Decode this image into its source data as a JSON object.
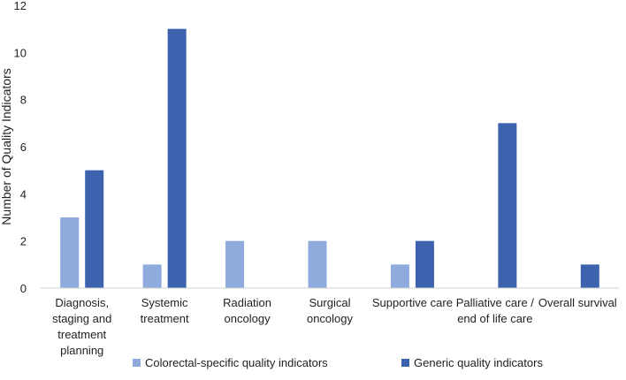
{
  "chart_data": {
    "type": "bar",
    "title": "",
    "xlabel": "",
    "ylabel": "Number of Quality Indicators",
    "ylim": [
      0,
      12
    ],
    "yticks": [
      0,
      2,
      4,
      6,
      8,
      10,
      12
    ],
    "grid": false,
    "legend_position": "bottom",
    "categories": [
      [
        "Diagnosis,",
        "staging and",
        "treatment",
        "planning"
      ],
      [
        "Systemic",
        "treatment"
      ],
      [
        "Radiation",
        "oncology"
      ],
      [
        "Surgical",
        "oncology"
      ],
      [
        "Supportive care"
      ],
      [
        "Palliative care /",
        "end of life care"
      ],
      [
        "Overall survival"
      ]
    ],
    "series": [
      {
        "name": "Colorectal-specific quality indicators",
        "color": "#8FAADC",
        "values": [
          3,
          1,
          2,
          2,
          1,
          null,
          null
        ]
      },
      {
        "name": "Generic quality indicators",
        "color": "#3D62AE",
        "values": [
          5,
          11,
          null,
          null,
          2,
          7,
          1
        ]
      }
    ]
  }
}
